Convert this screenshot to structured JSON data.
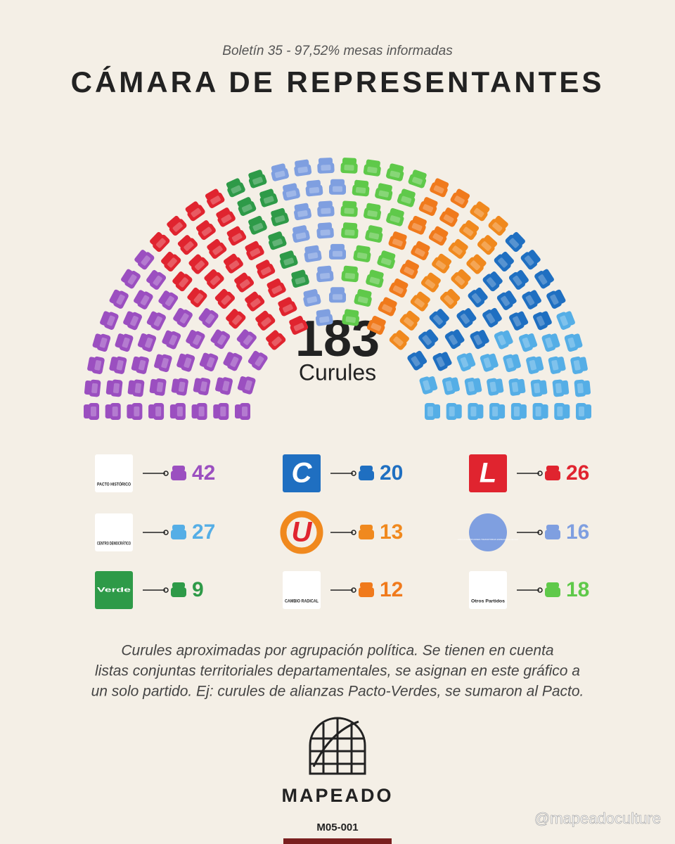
{
  "chart_data": {
    "type": "parliament",
    "subtitle": "Boletín 35 - 97,52% mesas informadas",
    "title": "CÁMARA DE REPRESENTANTES",
    "total": 183,
    "total_label": "Curules",
    "series": [
      {
        "name": "PACTO HISTÓRICO",
        "color": "#9b4fc0",
        "values": [
          42
        ]
      },
      {
        "name": "L",
        "color": "#e0242f",
        "values": [
          26
        ]
      },
      {
        "name": "Verde",
        "color": "#2e9a48",
        "values": [
          9
        ]
      },
      {
        "name": "CIRCUNSCRIPCIONES TRANSITORIAS ESPECIALES DE PAZ",
        "color": "#7f9fe0",
        "values": [
          16
        ]
      },
      {
        "name": "Otros Partidos",
        "color": "#5fc94a",
        "values": [
          18
        ]
      },
      {
        "name": "CAMBIO RADICAL",
        "color": "#f07a1c",
        "values": [
          12
        ]
      },
      {
        "name": "U",
        "color": "#f0891e",
        "values": [
          13
        ]
      },
      {
        "name": "C",
        "color": "#1f6fc1",
        "values": [
          20
        ]
      },
      {
        "name": "CENTRO DEMOCRÁTICO",
        "color": "#55aee6",
        "values": [
          27
        ]
      }
    ],
    "note": [
      "Curules aproximadas por agrupación política. Se tienen en cuenta",
      "listas conjuntas territoriales departamentales, se asignan en este gráfico a",
      "un solo partido. Ej: curules de alianzas Pacto-Verdes, se sumaron al Pacto."
    ]
  },
  "footer": {
    "brand": "MAPEADO",
    "code": "M05-001",
    "watermark": "@mapeadoculture"
  }
}
